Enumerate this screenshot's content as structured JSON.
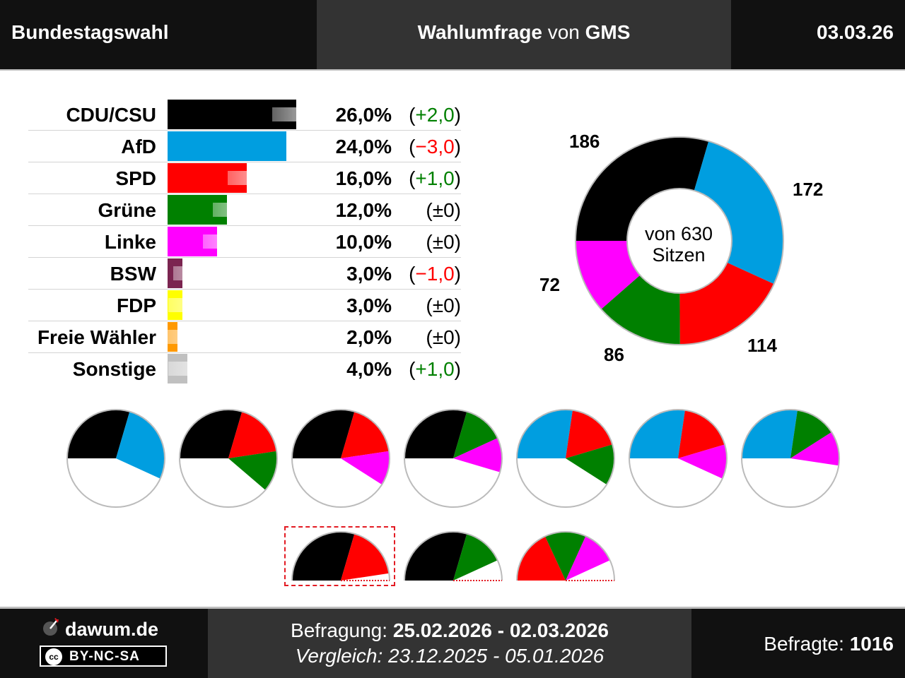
{
  "header": {
    "title": "Bundestagswahl",
    "subtitle_prefix": "Wahlumfrage",
    "subtitle_mid": "von",
    "pollster": "GMS",
    "date": "03.03.26"
  },
  "chart_data": [
    {
      "type": "bar",
      "categories": [
        "CDU/CSU",
        "AfD",
        "SPD",
        "Grüne",
        "Linke",
        "BSW",
        "FDP",
        "Freie Wähler",
        "Sonstige"
      ],
      "series": [
        {
          "values": [
            26.0,
            24.0,
            16.0,
            12.0,
            10.0,
            3.0,
            3.0,
            2.0,
            4.0
          ]
        },
        {
          "values": [
            24.0,
            27.0,
            15.0,
            12.0,
            10.0,
            4.0,
            3.0,
            2.0,
            3.0
          ]
        }
      ],
      "value_labels": [
        "26,0%",
        "24,0%",
        "16,0%",
        "12,0%",
        "10,0%",
        "3,0%",
        "3,0%",
        "2,0%",
        "4,0%"
      ],
      "change_labels": [
        "(+2,0)",
        "(−3,0)",
        "(+1,0)",
        "(±0)",
        "(±0)",
        "(−1,0)",
        "(±0)",
        "(±0)",
        "(+1,0)"
      ],
      "change_colors": [
        "#008000",
        "#ff0000",
        "#008000",
        "#000000",
        "#000000",
        "#ff0000",
        "#000000",
        "#000000",
        "#008000"
      ],
      "colors": [
        "#000000",
        "#009ee0",
        "#ff0000",
        "#008000",
        "#ff00ff",
        "#7b2450",
        "#ffff00",
        "#ff9900",
        "#c0c0c0"
      ],
      "xlim": [
        0,
        30
      ]
    },
    {
      "type": "pie",
      "categories": [
        "CDU/CSU",
        "AfD",
        "SPD",
        "Grüne",
        "Linke"
      ],
      "values": [
        186,
        172,
        114,
        86,
        72
      ],
      "labels": [
        "186",
        "172",
        "114",
        "86",
        "72"
      ],
      "colors": [
        "#000000",
        "#009ee0",
        "#ff0000",
        "#008000",
        "#ff00ff"
      ],
      "center_line1": "von 630",
      "center_line2": "Sitzen"
    }
  ],
  "coalitions": [
    {
      "parties": [
        "CDU/CSU",
        "AfD"
      ],
      "seats": [
        186,
        172
      ],
      "colors": [
        "#000000",
        "#009ee0"
      ]
    },
    {
      "parties": [
        "CDU/CSU",
        "SPD",
        "Grüne"
      ],
      "seats": [
        186,
        114,
        86
      ],
      "colors": [
        "#000000",
        "#ff0000",
        "#008000"
      ]
    },
    {
      "parties": [
        "CDU/CSU",
        "SPD",
        "Linke"
      ],
      "seats": [
        186,
        114,
        72
      ],
      "colors": [
        "#000000",
        "#ff0000",
        "#ff00ff"
      ]
    },
    {
      "parties": [
        "CDU/CSU",
        "Grüne",
        "Linke"
      ],
      "seats": [
        186,
        86,
        72
      ],
      "colors": [
        "#000000",
        "#008000",
        "#ff00ff"
      ]
    },
    {
      "parties": [
        "AfD",
        "SPD",
        "Grüne"
      ],
      "seats": [
        172,
        114,
        86
      ],
      "colors": [
        "#009ee0",
        "#ff0000",
        "#008000"
      ]
    },
    {
      "parties": [
        "AfD",
        "SPD",
        "Linke"
      ],
      "seats": [
        172,
        114,
        72
      ],
      "colors": [
        "#009ee0",
        "#ff0000",
        "#ff00ff"
      ]
    },
    {
      "parties": [
        "AfD",
        "Grüne",
        "Linke"
      ],
      "seats": [
        172,
        86,
        72
      ],
      "colors": [
        "#009ee0",
        "#008000",
        "#ff00ff"
      ]
    },
    {
      "parties": [
        "CDU/CSU",
        "SPD"
      ],
      "seats": [
        186,
        114
      ],
      "colors": [
        "#000000",
        "#ff0000"
      ],
      "highlighted": true
    },
    {
      "parties": [
        "CDU/CSU",
        "Grüne"
      ],
      "seats": [
        186,
        86
      ],
      "colors": [
        "#000000",
        "#008000"
      ]
    },
    {
      "parties": [
        "SPD",
        "Grüne",
        "Linke"
      ],
      "seats": [
        114,
        86,
        72
      ],
      "colors": [
        "#ff0000",
        "#008000",
        "#ff00ff"
      ]
    }
  ],
  "footer": {
    "site": "dawum.de",
    "license": "BY-NC-SA",
    "license_icon": "cc",
    "survey_label": "Befragung:",
    "survey_range": "25.02.2026 - 02.03.2026",
    "compare_label": "Vergleich:",
    "compare_range": "23.12.2025 - 05.01.2026",
    "respondents_label": "Befragte:",
    "respondents": "1016"
  }
}
